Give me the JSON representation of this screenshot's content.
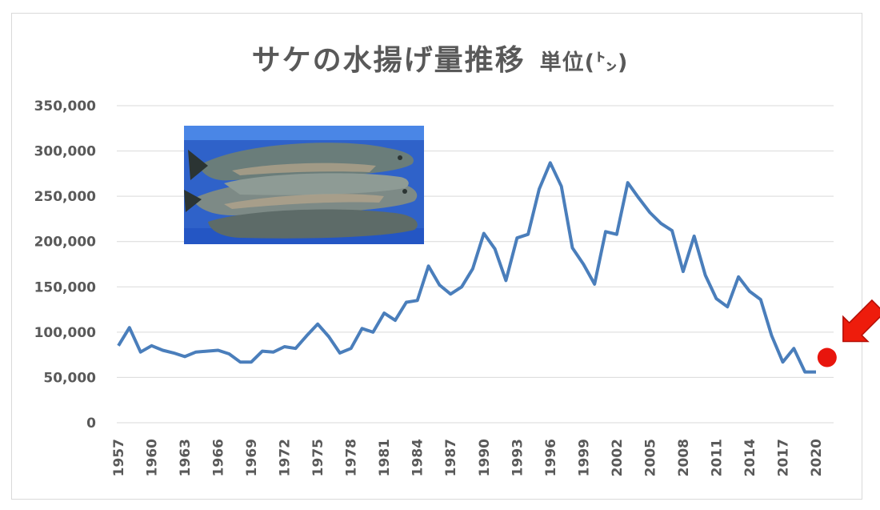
{
  "chart_data": {
    "type": "line",
    "title": "サケの水揚げ量推移",
    "unit": "単位(㌧)",
    "ylim": [
      0,
      350000
    ],
    "yticks": [
      "350,000",
      "300,000",
      "250,000",
      "200,000",
      "150,000",
      "100,000",
      "50,000",
      "0"
    ],
    "ytick_values": [
      350000,
      300000,
      250000,
      200000,
      150000,
      100000,
      50000,
      0
    ],
    "xticks": [
      "1957",
      "1960",
      "1963",
      "1966",
      "1969",
      "1972",
      "1975",
      "1978",
      "1981",
      "1984",
      "1987",
      "1990",
      "1993",
      "1996",
      "1999",
      "2002",
      "2005",
      "2008",
      "2011",
      "2014",
      "2017",
      "2020"
    ],
    "grid": true,
    "series": [
      {
        "color": "#4a7ebb",
        "x": [
          1957,
          1958,
          1959,
          1960,
          1961,
          1962,
          1963,
          1964,
          1965,
          1966,
          1967,
          1968,
          1969,
          1970,
          1971,
          1972,
          1973,
          1974,
          1975,
          1976,
          1977,
          1978,
          1979,
          1980,
          1981,
          1982,
          1983,
          1984,
          1985,
          1986,
          1987,
          1988,
          1989,
          1990,
          1991,
          1992,
          1993,
          1994,
          1995,
          1996,
          1997,
          1998,
          1999,
          2000,
          2001,
          2002,
          2003,
          2004,
          2005,
          2006,
          2007,
          2008,
          2009,
          2010,
          2011,
          2012,
          2013,
          2014,
          2015,
          2016,
          2017,
          2018,
          2019,
          2020
        ],
        "values": [
          85000,
          105000,
          78000,
          85000,
          80000,
          77000,
          73000,
          78000,
          79000,
          80000,
          76000,
          67000,
          67000,
          79000,
          78000,
          84000,
          82000,
          96000,
          109000,
          95000,
          77000,
          82000,
          104000,
          100000,
          121000,
          113000,
          133000,
          135000,
          173000,
          152000,
          142000,
          150000,
          170000,
          209000,
          192000,
          157000,
          204000,
          208000,
          258000,
          287000,
          261000,
          193000,
          175000,
          153000,
          211000,
          208000,
          265000,
          248000,
          232000,
          220000,
          212000,
          167000,
          206000,
          163000,
          137000,
          128000,
          161000,
          145000,
          136000,
          96000,
          67000,
          82000,
          56000,
          56000
        ]
      }
    ],
    "highlight_point": {
      "x": 2021,
      "y": 72000,
      "color": "#e8150d"
    }
  },
  "photo": {
    "description_icon": "salmon-photo"
  },
  "colors": {
    "line": "#4a7ebb",
    "grid": "#d9d9d9",
    "text": "#595959",
    "marker": "#e8150d",
    "arrow": "#ee1c0c"
  }
}
